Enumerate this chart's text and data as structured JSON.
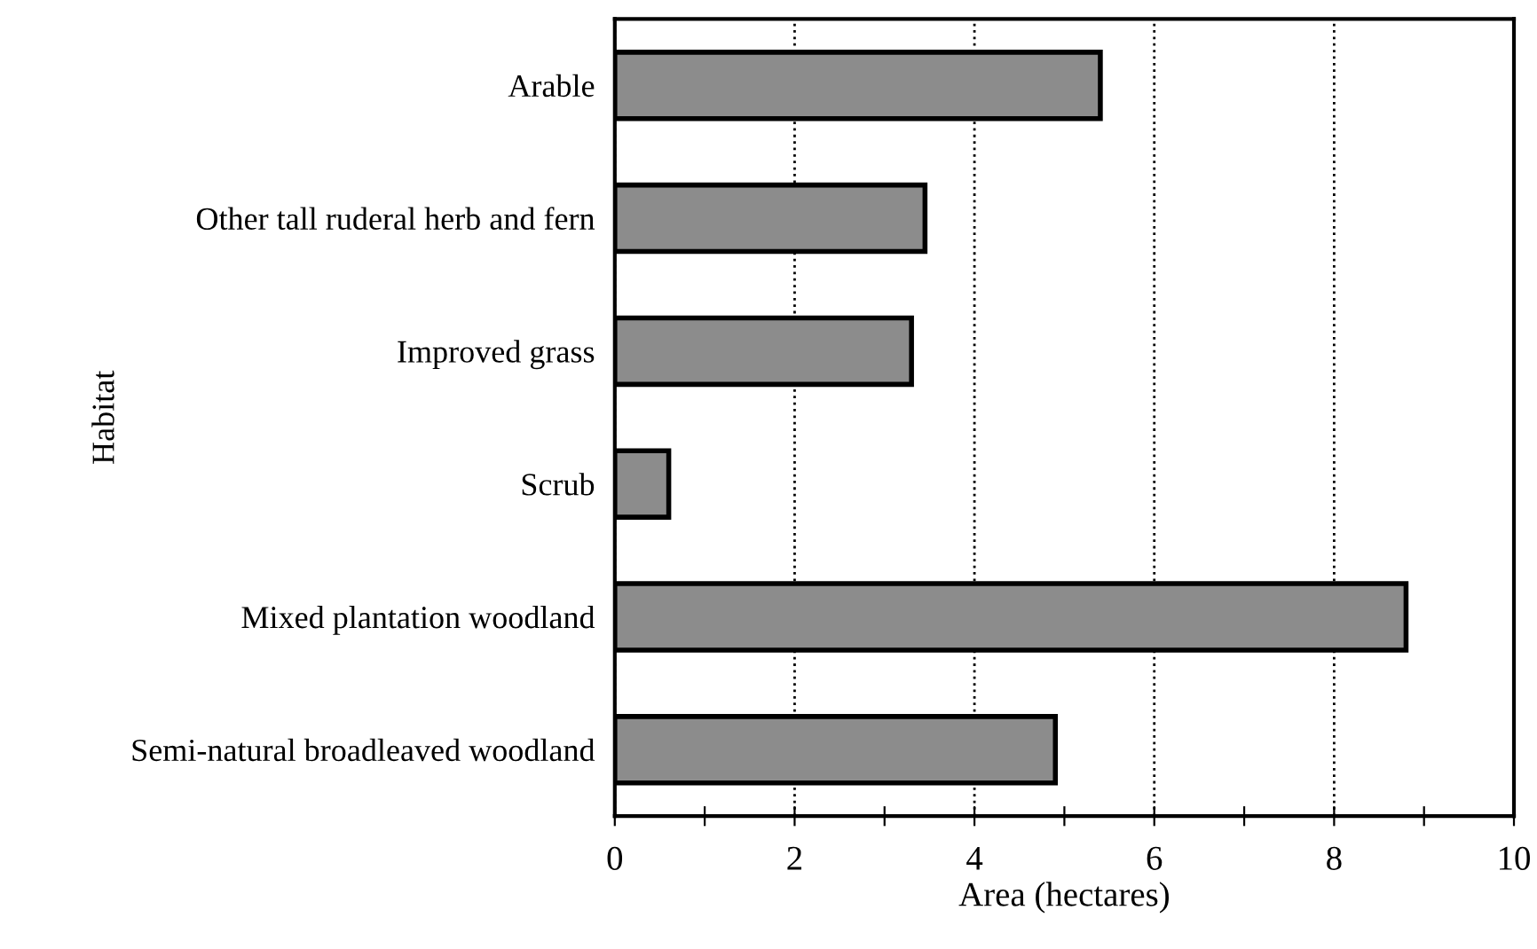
{
  "chart_data": {
    "type": "bar",
    "orientation": "horizontal",
    "ylabel": "Habitat",
    "xlabel": "Area (hectares)",
    "categories": [
      "Arable",
      "Other tall ruderal herb and fern",
      "Improved grass",
      "Scrub",
      "Mixed plantation woodland",
      "Semi-natural broadleaved woodland"
    ],
    "values": [
      5.4,
      3.45,
      3.3,
      0.6,
      8.8,
      4.9
    ],
    "color": "#8c8c8c",
    "xlim": [
      0,
      10
    ],
    "xticks": [
      0,
      {
        "value": 1,
        "label": null
      },
      2,
      {
        "value": 3,
        "label": null
      },
      4,
      {
        "value": 5,
        "label": null
      },
      6,
      {
        "value": 7,
        "label": null
      },
      8,
      {
        "value": 9,
        "label": null
      },
      10
    ],
    "grid": "x",
    "line_style": "dotted"
  }
}
